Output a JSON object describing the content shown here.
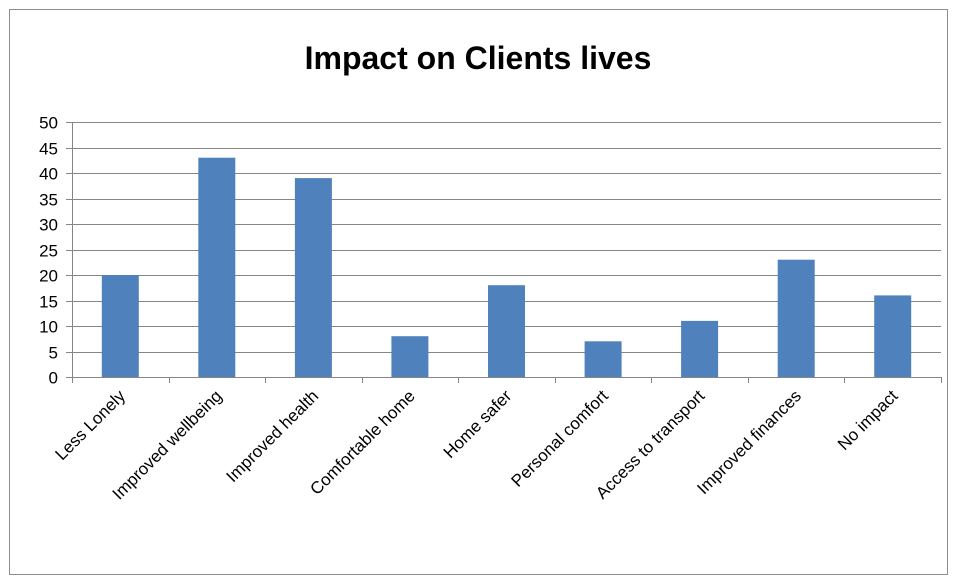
{
  "chart_data": {
    "type": "bar",
    "title": "Impact on Clients lives",
    "xlabel": "",
    "ylabel": "",
    "categories": [
      "Less Lonely",
      "Improved wellbeing",
      "Improved health",
      "Comfortable home",
      "Home safer",
      "Personal comfort",
      "Access to transport",
      "Improved finances",
      "No impact"
    ],
    "values": [
      20,
      43,
      39,
      8,
      18,
      7,
      11,
      23,
      16
    ],
    "ylim": [
      0,
      50
    ],
    "yticks": [
      0,
      5,
      10,
      15,
      20,
      25,
      30,
      35,
      40,
      45,
      50
    ],
    "grid": true,
    "legend": "none",
    "bar_color": "#4f81bd",
    "grid_color": "#868686"
  }
}
